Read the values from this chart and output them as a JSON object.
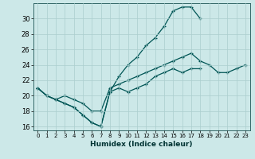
{
  "xlabel": "Humidex (Indice chaleur)",
  "ylabel": "",
  "background_color": "#cce8e8",
  "grid_color": "#aacece",
  "line_color": "#005555",
  "xlim": [
    -0.5,
    23.5
  ],
  "ylim": [
    15.5,
    32.0
  ],
  "xticks": [
    0,
    1,
    2,
    3,
    4,
    5,
    6,
    7,
    8,
    9,
    10,
    11,
    12,
    13,
    14,
    15,
    16,
    17,
    18,
    19,
    20,
    21,
    22,
    23
  ],
  "yticks": [
    16,
    18,
    20,
    22,
    24,
    26,
    28,
    30
  ],
  "line1_x": [
    0,
    1,
    2,
    3,
    4,
    5,
    6,
    7,
    8,
    9,
    10,
    11,
    12,
    13,
    14,
    15,
    16,
    17,
    18,
    19,
    20,
    21,
    22,
    23
  ],
  "line1_y": [
    21.0,
    20.0,
    19.5,
    19.0,
    18.5,
    17.5,
    16.5,
    16.0,
    20.5,
    21.0,
    20.5,
    21.0,
    21.5,
    22.5,
    23.0,
    23.5,
    23.0,
    23.5,
    23.5,
    null,
    null,
    null,
    null,
    null
  ],
  "line2_x": [
    0,
    1,
    2,
    3,
    4,
    5,
    6,
    7,
    8,
    9,
    10,
    11,
    12,
    13,
    14,
    15,
    16,
    17,
    18,
    19,
    20,
    21,
    22,
    23
  ],
  "line2_y": [
    21.0,
    20.0,
    19.5,
    19.0,
    18.5,
    17.5,
    16.5,
    16.0,
    20.5,
    22.5,
    24.0,
    25.0,
    26.5,
    27.5,
    29.0,
    31.0,
    31.5,
    31.5,
    30.0,
    null,
    null,
    null,
    null,
    null
  ],
  "line3_x": [
    0,
    1,
    2,
    3,
    4,
    5,
    6,
    7,
    8,
    9,
    10,
    11,
    12,
    13,
    14,
    15,
    16,
    17,
    18,
    19,
    20,
    21,
    22,
    23
  ],
  "line3_y": [
    21.0,
    20.0,
    19.5,
    20.0,
    19.5,
    19.0,
    18.0,
    18.0,
    21.0,
    21.5,
    22.0,
    22.5,
    23.0,
    23.5,
    24.0,
    24.5,
    25.0,
    25.5,
    24.5,
    24.0,
    23.0,
    23.0,
    23.5,
    24.0
  ]
}
